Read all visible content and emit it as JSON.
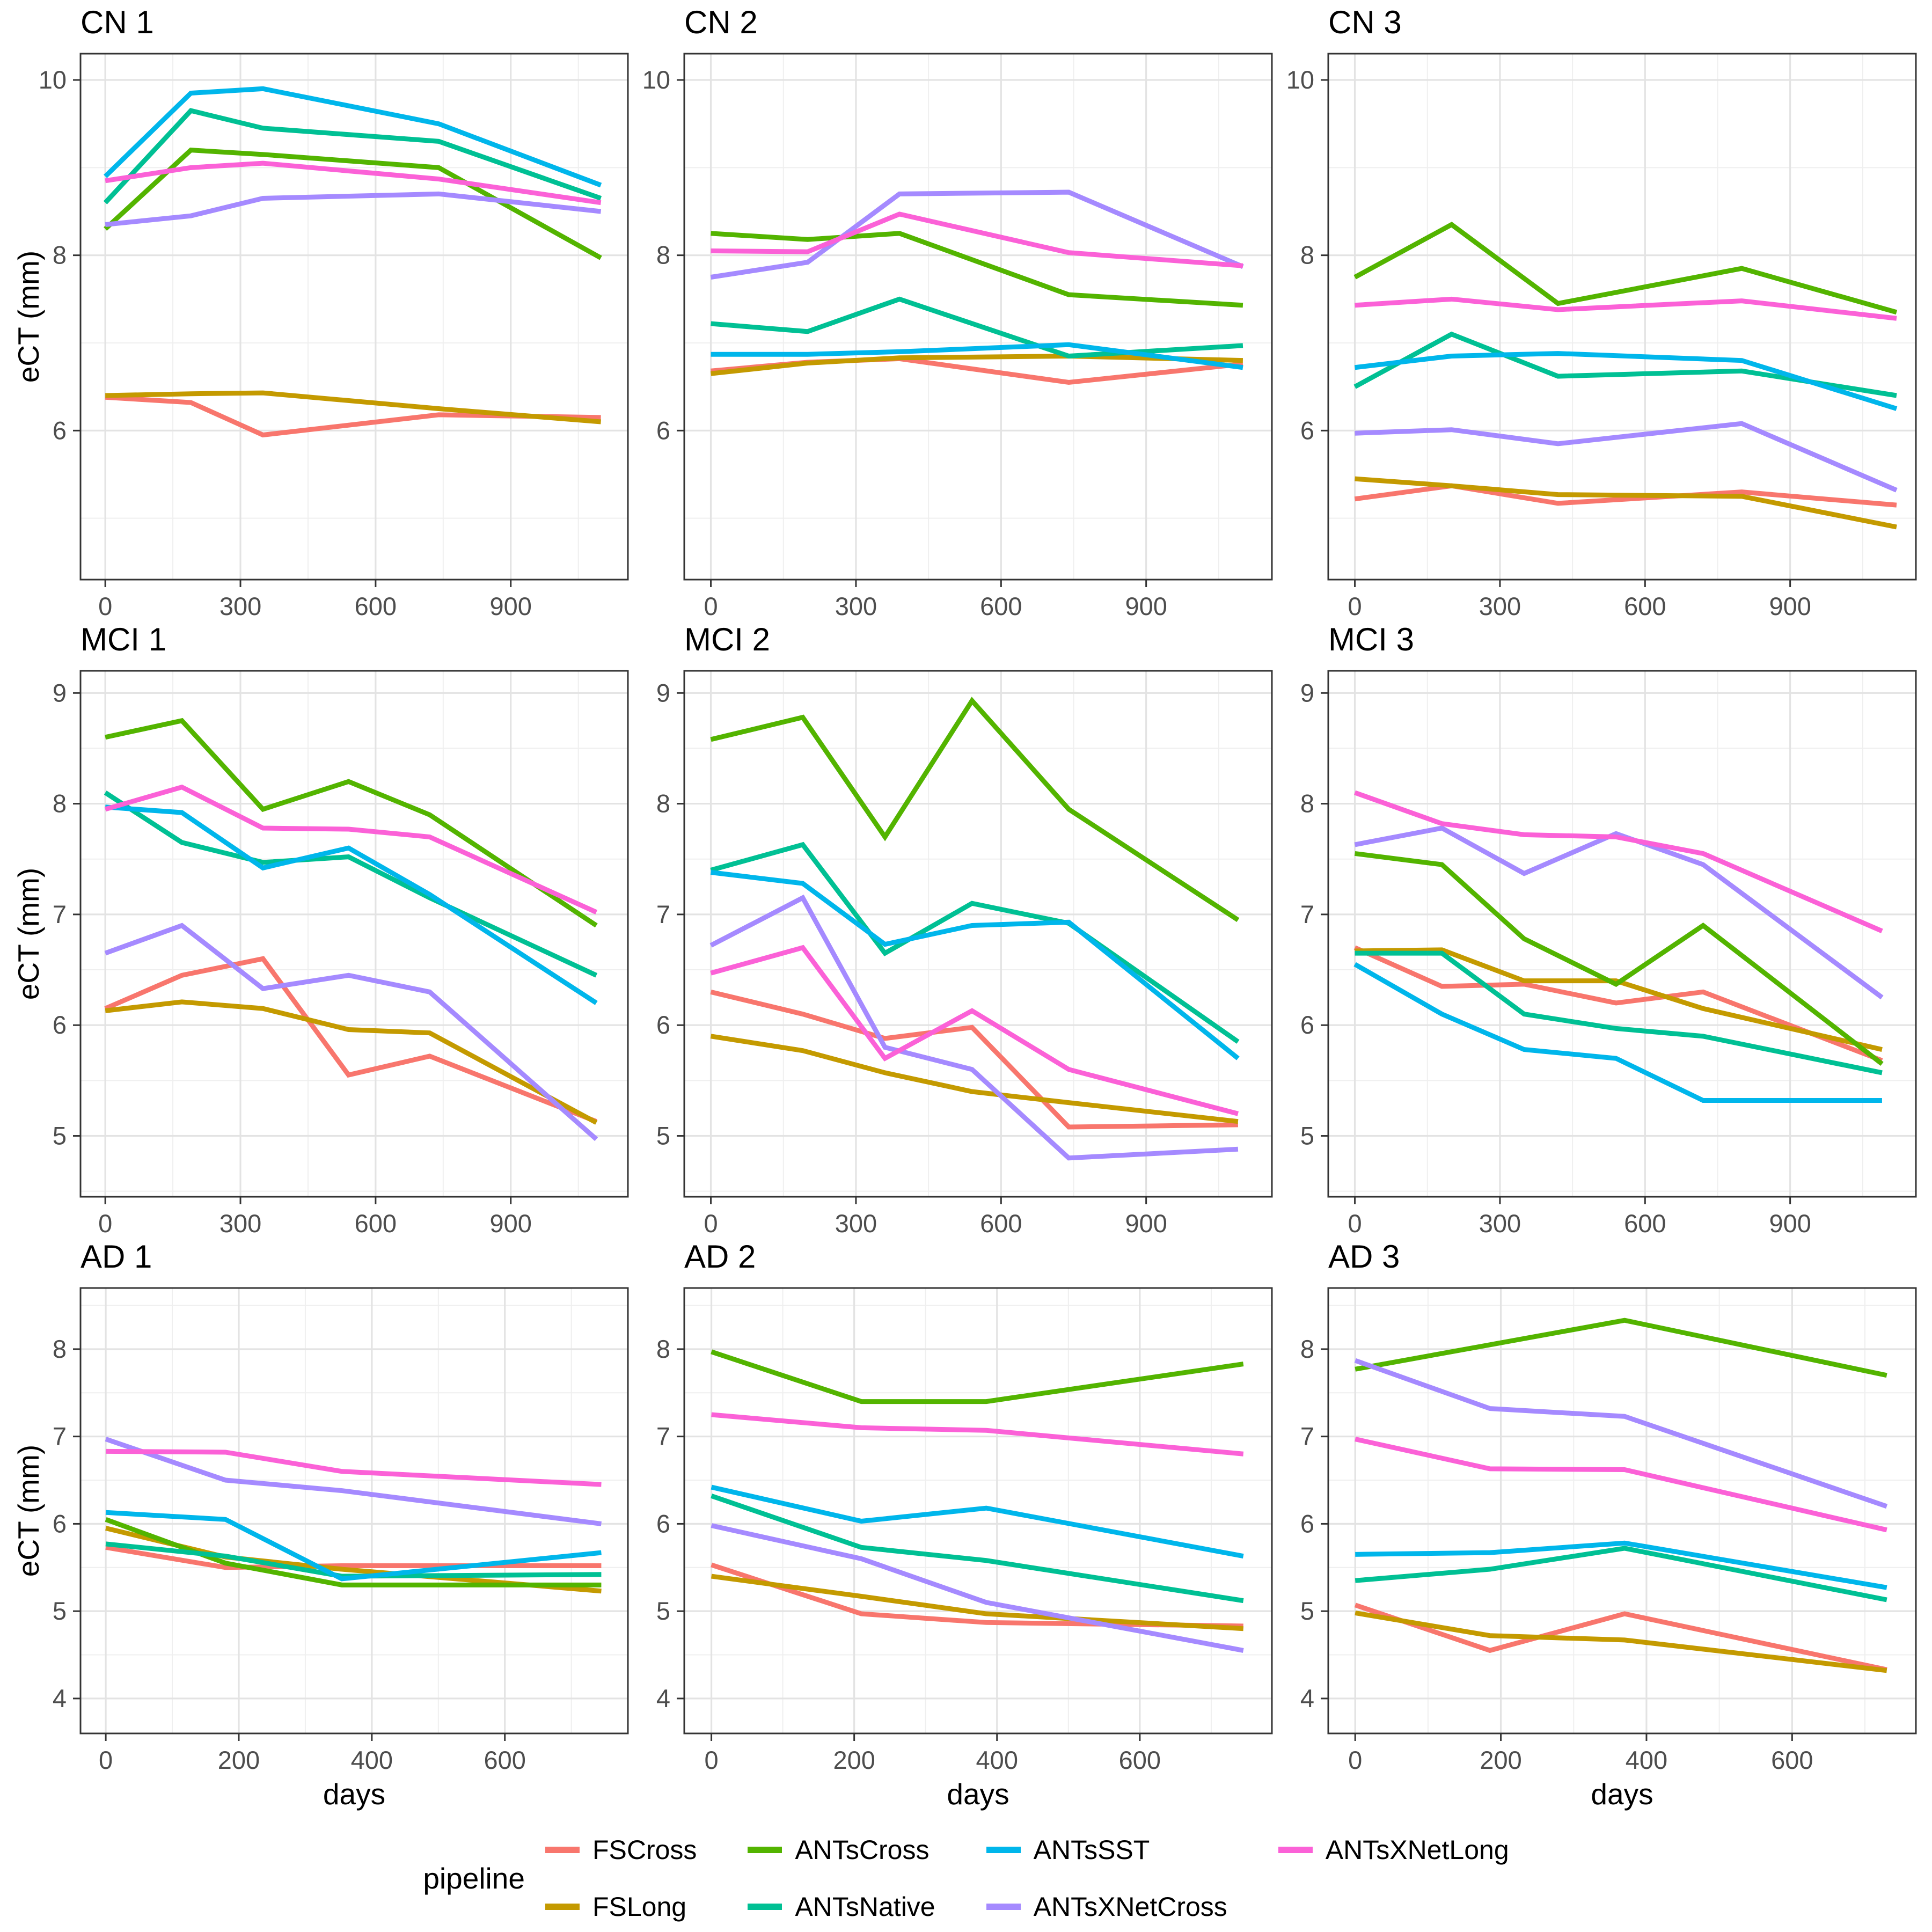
{
  "figure": {
    "ylabel": "eCT (mm)",
    "xlabel": "days",
    "legend_title": "pipeline",
    "background": "#ffffff",
    "grid_major_color": "#e3e3e3",
    "grid_minor_color": "#efefef",
    "panel_border_color": "#343434",
    "tick_label_color": "#4d4d4d",
    "title_color": "#000000"
  },
  "pipelines": [
    {
      "name": "FSCross",
      "color": "#F8766D"
    },
    {
      "name": "FSLong",
      "color": "#C49A00"
    },
    {
      "name": "ANTsCross",
      "color": "#53B400"
    },
    {
      "name": "ANTsNative",
      "color": "#00C094"
    },
    {
      "name": "ANTsSST",
      "color": "#00B6EB"
    },
    {
      "name": "ANTsXNetCross",
      "color": "#A58AFF"
    },
    {
      "name": "ANTsXNetLong",
      "color": "#FB61D7"
    }
  ],
  "chart_data": [
    {
      "type": "line",
      "title": "CN 1",
      "x": [
        0,
        190,
        350,
        740,
        1100
      ],
      "xlim": [
        -55,
        1160
      ],
      "ylim": [
        4.3,
        10.3
      ],
      "xticks": [
        0,
        300,
        600,
        900
      ],
      "yticks": [
        6,
        8,
        10
      ],
      "show_ylab": true,
      "show_xlab": false,
      "series": [
        {
          "name": "FSCross",
          "values": [
            6.38,
            6.32,
            5.95,
            6.18,
            6.15
          ]
        },
        {
          "name": "FSLong",
          "values": [
            6.4,
            6.42,
            6.43,
            6.25,
            6.1
          ]
        },
        {
          "name": "ANTsCross",
          "values": [
            8.3,
            9.2,
            9.15,
            9.0,
            7.97
          ]
        },
        {
          "name": "ANTsNative",
          "values": [
            8.6,
            9.65,
            9.45,
            9.3,
            8.65
          ]
        },
        {
          "name": "ANTsSST",
          "values": [
            8.9,
            9.85,
            9.9,
            9.5,
            8.8
          ]
        },
        {
          "name": "ANTsXNetCross",
          "values": [
            8.35,
            8.45,
            8.65,
            8.7,
            8.5
          ]
        },
        {
          "name": "ANTsXNetLong",
          "values": [
            8.85,
            9.0,
            9.05,
            8.87,
            8.6
          ]
        }
      ]
    },
    {
      "type": "line",
      "title": "CN 2",
      "x": [
        0,
        200,
        390,
        740,
        1100
      ],
      "xlim": [
        -55,
        1160
      ],
      "ylim": [
        4.3,
        10.3
      ],
      "xticks": [
        0,
        300,
        600,
        900
      ],
      "yticks": [
        6,
        8,
        10
      ],
      "show_ylab": false,
      "show_xlab": false,
      "series": [
        {
          "name": "FSCross",
          "values": [
            6.68,
            6.78,
            6.82,
            6.55,
            6.76
          ]
        },
        {
          "name": "FSLong",
          "values": [
            6.65,
            6.77,
            6.83,
            6.85,
            6.8
          ]
        },
        {
          "name": "ANTsCross",
          "values": [
            8.25,
            8.18,
            8.25,
            7.55,
            7.43
          ]
        },
        {
          "name": "ANTsNative",
          "values": [
            7.22,
            7.13,
            7.5,
            6.85,
            6.97
          ]
        },
        {
          "name": "ANTsSST",
          "values": [
            6.87,
            6.87,
            6.9,
            6.98,
            6.72
          ]
        },
        {
          "name": "ANTsXNetCross",
          "values": [
            7.75,
            7.92,
            8.7,
            8.72,
            7.87
          ]
        },
        {
          "name": "ANTsXNetLong",
          "values": [
            8.05,
            8.04,
            8.47,
            8.03,
            7.88
          ]
        }
      ]
    },
    {
      "type": "line",
      "title": "CN 3",
      "x": [
        0,
        200,
        420,
        800,
        1120
      ],
      "xlim": [
        -55,
        1160
      ],
      "ylim": [
        4.3,
        10.3
      ],
      "xticks": [
        0,
        300,
        600,
        900
      ],
      "yticks": [
        6,
        8,
        10
      ],
      "show_ylab": false,
      "show_xlab": false,
      "series": [
        {
          "name": "FSCross",
          "values": [
            5.22,
            5.37,
            5.17,
            5.3,
            5.15
          ]
        },
        {
          "name": "FSLong",
          "values": [
            5.45,
            5.37,
            5.27,
            5.25,
            4.9
          ]
        },
        {
          "name": "ANTsCross",
          "values": [
            7.75,
            8.35,
            7.45,
            7.85,
            7.35
          ]
        },
        {
          "name": "ANTsNative",
          "values": [
            6.5,
            7.1,
            6.62,
            6.68,
            6.4
          ]
        },
        {
          "name": "ANTsSST",
          "values": [
            6.72,
            6.85,
            6.88,
            6.8,
            6.25
          ]
        },
        {
          "name": "ANTsXNetCross",
          "values": [
            5.97,
            6.01,
            5.85,
            6.08,
            5.32
          ]
        },
        {
          "name": "ANTsXNetLong",
          "values": [
            7.43,
            7.5,
            7.38,
            7.48,
            7.28
          ]
        }
      ]
    },
    {
      "type": "line",
      "title": "MCI 1",
      "x": [
        0,
        170,
        350,
        540,
        720,
        1090
      ],
      "xlim": [
        -55,
        1160
      ],
      "ylim": [
        4.45,
        9.2
      ],
      "xticks": [
        0,
        300,
        600,
        900
      ],
      "yticks": [
        5,
        6,
        7,
        8,
        9
      ],
      "show_ylab": true,
      "show_xlab": false,
      "series": [
        {
          "name": "FSCross",
          "values": [
            6.15,
            6.45,
            6.6,
            5.55,
            5.72,
            5.13
          ]
        },
        {
          "name": "FSLong",
          "values": [
            6.13,
            6.21,
            6.15,
            5.96,
            5.93,
            5.12
          ]
        },
        {
          "name": "ANTsCross",
          "values": [
            8.6,
            8.75,
            7.95,
            8.2,
            7.9,
            6.9
          ]
        },
        {
          "name": "ANTsNative",
          "values": [
            8.1,
            7.65,
            7.47,
            7.52,
            7.15,
            6.45
          ]
        },
        {
          "name": "ANTsSST",
          "values": [
            7.97,
            7.92,
            7.42,
            7.6,
            7.18,
            6.2
          ]
        },
        {
          "name": "ANTsXNetCross",
          "values": [
            6.65,
            6.9,
            6.33,
            6.45,
            6.3,
            4.97
          ]
        },
        {
          "name": "ANTsXNetLong",
          "values": [
            7.95,
            8.15,
            7.78,
            7.77,
            7.7,
            7.02
          ]
        }
      ]
    },
    {
      "type": "line",
      "title": "MCI 2",
      "x": [
        0,
        190,
        360,
        540,
        740,
        1090
      ],
      "xlim": [
        -55,
        1160
      ],
      "ylim": [
        4.45,
        9.2
      ],
      "xticks": [
        0,
        300,
        600,
        900
      ],
      "yticks": [
        5,
        6,
        7,
        8,
        9
      ],
      "show_ylab": false,
      "show_xlab": false,
      "series": [
        {
          "name": "FSCross",
          "values": [
            6.3,
            6.1,
            5.88,
            5.98,
            5.08,
            5.1
          ]
        },
        {
          "name": "FSLong",
          "values": [
            5.9,
            5.77,
            5.57,
            5.4,
            5.3,
            5.13
          ]
        },
        {
          "name": "ANTsCross",
          "values": [
            8.58,
            8.78,
            7.7,
            8.93,
            7.95,
            6.95
          ]
        },
        {
          "name": "ANTsNative",
          "values": [
            7.4,
            7.63,
            6.65,
            7.1,
            6.92,
            5.85
          ]
        },
        {
          "name": "ANTsSST",
          "values": [
            7.38,
            7.28,
            6.73,
            6.9,
            6.93,
            5.7
          ]
        },
        {
          "name": "ANTsXNetCross",
          "values": [
            6.72,
            7.15,
            5.8,
            5.6,
            4.8,
            4.88
          ]
        },
        {
          "name": "ANTsXNetLong",
          "values": [
            6.47,
            6.7,
            5.7,
            6.13,
            5.6,
            5.2
          ]
        }
      ]
    },
    {
      "type": "line",
      "title": "MCI 3",
      "x": [
        0,
        180,
        350,
        540,
        720,
        1090
      ],
      "xlim": [
        -55,
        1160
      ],
      "ylim": [
        4.45,
        9.2
      ],
      "xticks": [
        0,
        300,
        600,
        900
      ],
      "yticks": [
        5,
        6,
        7,
        8,
        9
      ],
      "show_ylab": false,
      "show_xlab": false,
      "series": [
        {
          "name": "FSCross",
          "values": [
            6.7,
            6.35,
            6.37,
            6.2,
            6.3,
            5.68
          ]
        },
        {
          "name": "FSLong",
          "values": [
            6.67,
            6.68,
            6.4,
            6.4,
            6.15,
            5.78
          ]
        },
        {
          "name": "ANTsCross",
          "values": [
            7.55,
            7.45,
            6.78,
            6.37,
            6.9,
            5.65
          ]
        },
        {
          "name": "ANTsNative",
          "values": [
            6.65,
            6.65,
            6.1,
            5.97,
            5.9,
            5.57
          ]
        },
        {
          "name": "ANTsSST",
          "values": [
            6.55,
            6.1,
            5.78,
            5.7,
            5.32,
            5.32
          ]
        },
        {
          "name": "ANTsXNetCross",
          "values": [
            7.63,
            7.78,
            7.37,
            7.73,
            7.45,
            6.25
          ]
        },
        {
          "name": "ANTsXNetLong",
          "values": [
            8.1,
            7.82,
            7.72,
            7.7,
            7.55,
            6.85
          ]
        }
      ]
    },
    {
      "type": "line",
      "title": "AD 1",
      "x": [
        0,
        180,
        355,
        745
      ],
      "xlim": [
        -38,
        785
      ],
      "ylim": [
        3.6,
        8.7
      ],
      "xticks": [
        0,
        200,
        400,
        600
      ],
      "yticks": [
        4,
        5,
        6,
        7,
        8
      ],
      "show_ylab": true,
      "show_xlab": true,
      "series": [
        {
          "name": "FSCross",
          "values": [
            5.73,
            5.5,
            5.52,
            5.52
          ]
        },
        {
          "name": "FSLong",
          "values": [
            5.95,
            5.62,
            5.48,
            5.23
          ]
        },
        {
          "name": "ANTsCross",
          "values": [
            6.05,
            5.55,
            5.3,
            5.3
          ]
        },
        {
          "name": "ANTsNative",
          "values": [
            5.77,
            5.63,
            5.4,
            5.42
          ]
        },
        {
          "name": "ANTsSST",
          "values": [
            6.13,
            6.05,
            5.37,
            5.67
          ]
        },
        {
          "name": "ANTsXNetCross",
          "values": [
            6.97,
            6.5,
            6.38,
            6.0
          ]
        },
        {
          "name": "ANTsXNetLong",
          "values": [
            6.83,
            6.82,
            6.6,
            6.45
          ]
        }
      ]
    },
    {
      "type": "line",
      "title": "AD 2",
      "x": [
        0,
        210,
        385,
        745
      ],
      "xlim": [
        -38,
        785
      ],
      "ylim": [
        3.6,
        8.7
      ],
      "xticks": [
        0,
        200,
        400,
        600
      ],
      "yticks": [
        4,
        5,
        6,
        7,
        8
      ],
      "show_ylab": false,
      "show_xlab": true,
      "series": [
        {
          "name": "FSCross",
          "values": [
            5.53,
            4.97,
            4.87,
            4.83
          ]
        },
        {
          "name": "FSLong",
          "values": [
            5.4,
            5.17,
            4.97,
            4.8
          ]
        },
        {
          "name": "ANTsCross",
          "values": [
            7.97,
            7.4,
            7.4,
            7.83
          ]
        },
        {
          "name": "ANTsNative",
          "values": [
            6.32,
            5.73,
            5.58,
            5.12
          ]
        },
        {
          "name": "ANTsSST",
          "values": [
            6.42,
            6.03,
            6.18,
            5.63
          ]
        },
        {
          "name": "ANTsXNetCross",
          "values": [
            5.98,
            5.6,
            5.1,
            4.55
          ]
        },
        {
          "name": "ANTsXNetLong",
          "values": [
            7.25,
            7.1,
            7.07,
            6.8
          ]
        }
      ]
    },
    {
      "type": "line",
      "title": "AD 3",
      "x": [
        0,
        185,
        370,
        730
      ],
      "xlim": [
        -37,
        770
      ],
      "ylim": [
        3.6,
        8.7
      ],
      "xticks": [
        0,
        200,
        400,
        600
      ],
      "yticks": [
        4,
        5,
        6,
        7,
        8
      ],
      "show_ylab": false,
      "show_xlab": true,
      "series": [
        {
          "name": "FSCross",
          "values": [
            5.07,
            4.55,
            4.97,
            4.33
          ]
        },
        {
          "name": "FSLong",
          "values": [
            4.98,
            4.72,
            4.67,
            4.32
          ]
        },
        {
          "name": "ANTsCross",
          "values": [
            7.77,
            8.05,
            8.33,
            7.7
          ]
        },
        {
          "name": "ANTsNative",
          "values": [
            5.35,
            5.48,
            5.72,
            5.13
          ]
        },
        {
          "name": "ANTsSST",
          "values": [
            5.65,
            5.67,
            5.78,
            5.27
          ]
        },
        {
          "name": "ANTsXNetCross",
          "values": [
            7.87,
            7.32,
            7.23,
            6.2
          ]
        },
        {
          "name": "ANTsXNetLong",
          "values": [
            6.97,
            6.63,
            6.62,
            5.93
          ]
        }
      ]
    }
  ]
}
